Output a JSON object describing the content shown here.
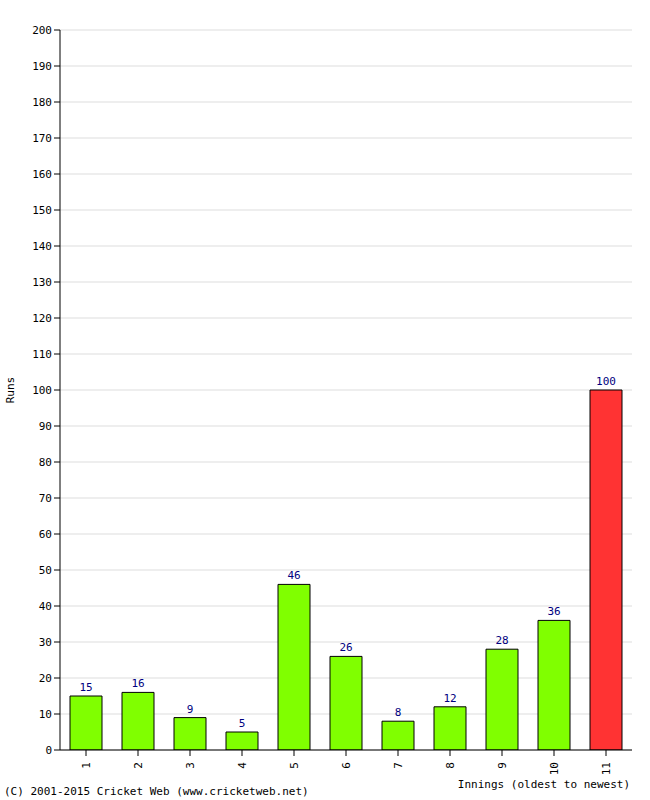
{
  "chart_data": {
    "type": "bar",
    "categories": [
      "1",
      "2",
      "3",
      "4",
      "5",
      "6",
      "7",
      "8",
      "9",
      "10",
      "11"
    ],
    "values": [
      15,
      16,
      9,
      5,
      46,
      26,
      8,
      12,
      28,
      36,
      100
    ],
    "colors": [
      "#80ff00",
      "#80ff00",
      "#80ff00",
      "#80ff00",
      "#80ff00",
      "#80ff00",
      "#80ff00",
      "#80ff00",
      "#80ff00",
      "#80ff00",
      "#ff3333"
    ],
    "xlabel": "Innings (oldest to newest)",
    "ylabel": "Runs",
    "ylim": [
      0,
      200
    ],
    "yticks": [
      0,
      10,
      20,
      30,
      40,
      50,
      60,
      70,
      80,
      90,
      100,
      110,
      120,
      130,
      140,
      150,
      160,
      170,
      180,
      190,
      200
    ],
    "grid": true,
    "data_labels": true,
    "annotations": [
      "(C) 2001-2015 Cricket Web (www.cricketweb.net)"
    ]
  }
}
